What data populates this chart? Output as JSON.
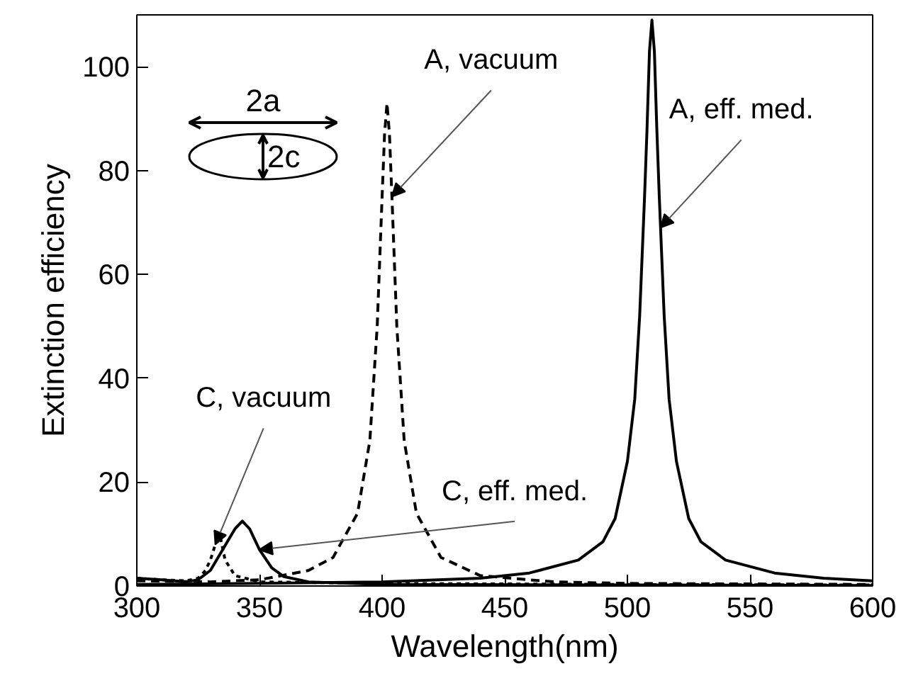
{
  "chart_data": {
    "type": "line",
    "xlabel": "Wavelength(nm)",
    "ylabel": "Extinction efficiency",
    "xlim": [
      300,
      600
    ],
    "xticks": [
      300,
      350,
      400,
      450,
      500,
      550,
      600
    ],
    "ylim": [
      0,
      110
    ],
    "yticks": [
      0,
      20,
      40,
      60,
      80,
      100
    ],
    "grid": false,
    "series": [
      {
        "color": "#000000",
        "line_style": "dashed",
        "x": [
          300,
          330,
          350,
          370,
          380,
          390,
          395,
          398,
          400,
          401,
          402,
          403,
          404,
          406,
          409,
          414,
          424,
          440,
          470,
          500,
          600
        ],
        "values": [
          1.0,
          0.8,
          1.2,
          3,
          5.5,
          14,
          28,
          50,
          75,
          87,
          93,
          87,
          75,
          50,
          28,
          14,
          5.5,
          2,
          0.8,
          0.5,
          0.3
        ]
      },
      {
        "color": "#000000",
        "line_style": "solid",
        "x": [
          300,
          350,
          400,
          440,
          460,
          480,
          490,
          495,
          500,
          503,
          505,
          507,
          508,
          509,
          510,
          511,
          512,
          513,
          515,
          517,
          520,
          525,
          530,
          540,
          560,
          580,
          600
        ],
        "values": [
          0.3,
          0.5,
          0.8,
          1.5,
          2.5,
          5,
          8.5,
          13,
          24,
          36,
          52,
          75,
          88,
          103,
          109,
          103,
          88,
          75,
          52,
          36,
          24,
          13,
          8.5,
          5,
          2.5,
          1.5,
          1
        ]
      },
      {
        "color": "#000000",
        "line_style": "dotted",
        "x": [
          300,
          310,
          320,
          325,
          328,
          330,
          332,
          334,
          336,
          340,
          350,
          400,
          500,
          600
        ],
        "values": [
          1.5,
          1.2,
          1.0,
          1.5,
          3,
          5,
          8,
          9.5,
          5,
          2,
          0.8,
          0.5,
          0.3,
          0.2
        ]
      },
      {
        "color": "#000000",
        "line_style": "solid",
        "x": [
          300,
          310,
          320,
          325,
          330,
          335,
          340,
          343,
          346,
          350,
          355,
          360,
          370,
          400,
          600
        ],
        "values": [
          1.5,
          1.2,
          0.8,
          1.2,
          3,
          7,
          11,
          12.5,
          11,
          7,
          3.5,
          1.8,
          0.8,
          0.3,
          0.1
        ]
      }
    ],
    "annotations": [
      {
        "text": "A, vacuum",
        "x": 404,
        "y": 75
      },
      {
        "text": "A, eff. med.",
        "x": 513.5,
        "y": 69
      },
      {
        "text": "C, vacuum",
        "x": 332,
        "y": 8
      },
      {
        "text": "C, eff. med.",
        "x": 350,
        "y": 7
      },
      "2a",
      "2c"
    ]
  }
}
